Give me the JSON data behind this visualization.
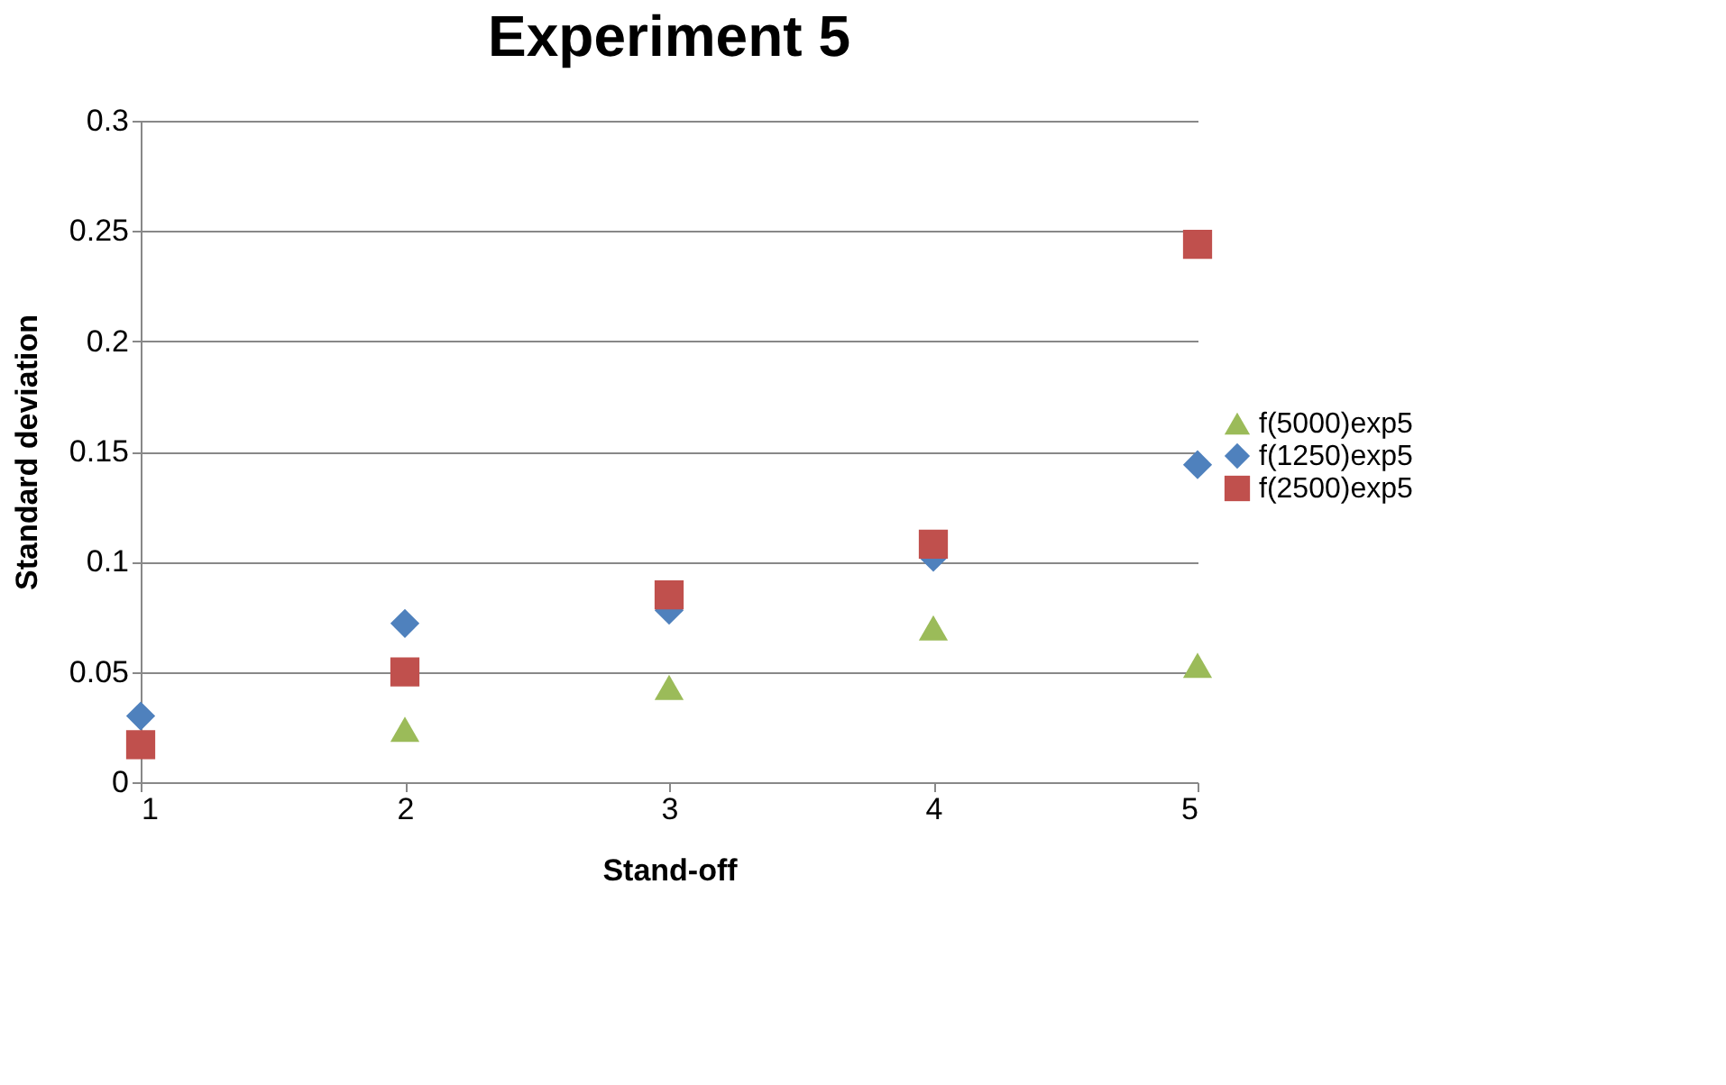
{
  "chart_data": {
    "type": "scatter",
    "title": "Experiment 5",
    "xlabel": "Stand-off",
    "ylabel": "Standard deviation",
    "x": [
      1,
      2,
      3,
      4,
      5
    ],
    "series": [
      {
        "name": "f(5000)exp5",
        "color": "#9bbb59",
        "marker": "triangle",
        "values": [
          null,
          0.024,
          0.043,
          0.07,
          0.053
        ]
      },
      {
        "name": "f(1250)exp5",
        "color": "#4f81bd",
        "marker": "diamond",
        "values": [
          0.03,
          0.072,
          0.078,
          0.102,
          0.144
        ]
      },
      {
        "name": "f(2500)exp5",
        "color": "#c0504d",
        "marker": "square",
        "values": [
          0.017,
          0.05,
          0.085,
          0.108,
          0.244
        ]
      }
    ],
    "xlim": [
      1,
      5
    ],
    "xticks": [
      1,
      2,
      3,
      4,
      5
    ],
    "ylim": [
      0,
      0.3
    ],
    "yticks": [
      0,
      0.05,
      0.1,
      0.15,
      0.2,
      0.25,
      0.3
    ],
    "grid": "y",
    "legend": "right"
  }
}
